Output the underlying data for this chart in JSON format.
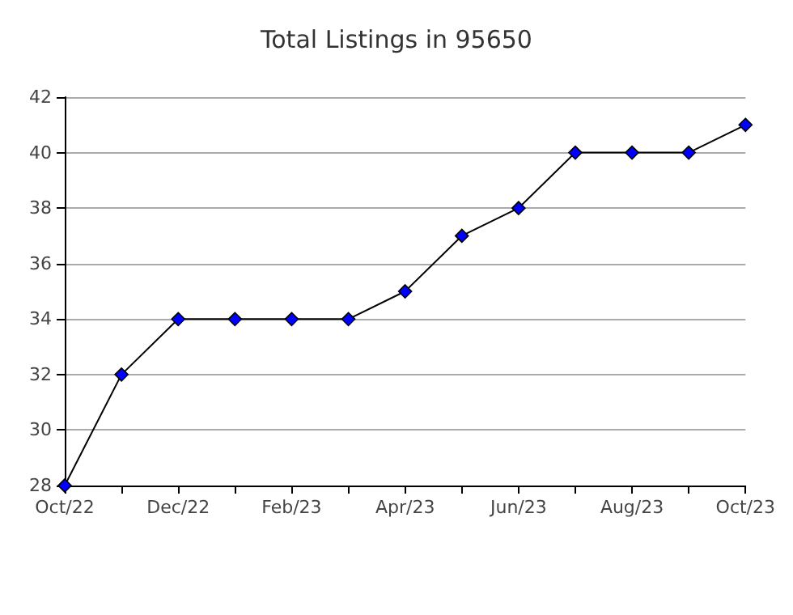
{
  "chart_data": {
    "type": "line",
    "title": "Total Listings in 95650",
    "categories": [
      "Oct/22",
      null,
      "Dec/22",
      null,
      "Feb/23",
      null,
      "Apr/23",
      null,
      "Jun/23",
      null,
      "Aug/23",
      null,
      "Oct/23"
    ],
    "series": [
      {
        "color": "#0000ff",
        "values": [
          28,
          32,
          34,
          34,
          34,
          34,
          35,
          37,
          38,
          40,
          40,
          40,
          41
        ]
      }
    ],
    "ylim": [
      28,
      42
    ],
    "yticks": [
      28,
      30,
      32,
      34,
      36,
      38,
      40,
      42
    ],
    "grid": "y",
    "marker": "diamond",
    "line_style": "solid"
  }
}
